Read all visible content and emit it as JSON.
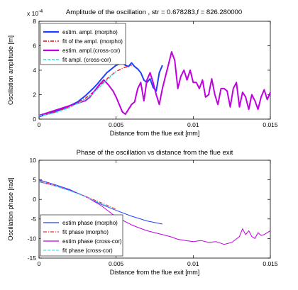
{
  "chart_data": [
    {
      "type": "line",
      "title": "Amplitude of the oscillation , str = 0.678283,f = 826.280000",
      "xlabel": "Distance from the flue exit [mm]",
      "ylabel": "Oscillation amplitude [m]",
      "exponent_label": "x 10",
      "exponent_power": "-4",
      "xlim": [
        0,
        0.015
      ],
      "ylim": [
        0,
        8
      ],
      "xticks": [
        0,
        0.005,
        0.01,
        0.015
      ],
      "xtick_labels": [
        "0",
        "0.005",
        "0.01",
        "0.015"
      ],
      "yticks": [
        0,
        2,
        4,
        6,
        8
      ],
      "ytick_labels": [
        "0",
        "2",
        "4",
        "6",
        "8"
      ],
      "grid": false,
      "legend_position": "top-left",
      "series": [
        {
          "name": "estim. ampl. (morpho)",
          "color": "#1f3fff",
          "style": "solid",
          "width": 2,
          "x": [
            0,
            0.0005,
            0.001,
            0.0015,
            0.002,
            0.0025,
            0.003,
            0.0035,
            0.0038,
            0.004,
            0.0042,
            0.0044,
            0.0046,
            0.0048,
            0.005,
            0.0052,
            0.0054,
            0.0056,
            0.0058,
            0.006,
            0.0062,
            0.0064,
            0.0066,
            0.0068,
            0.007,
            0.0072,
            0.0074,
            0.0076,
            0.0078,
            0.008
          ],
          "y": [
            0.2,
            0.4,
            0.6,
            0.8,
            1.1,
            1.4,
            1.9,
            2.5,
            2.9,
            3.2,
            3.5,
            3.8,
            4.0,
            4.2,
            4.4,
            4.5,
            4.6,
            4.4,
            4.3,
            4.6,
            4.3,
            4.1,
            3.8,
            3.2,
            3.0,
            3.3,
            2.6,
            2.3,
            3.8,
            4.4
          ]
        },
        {
          "name": "fit of the ampl. (morpho)",
          "color": "#ff2020",
          "style": "dashdot",
          "width": 1.5,
          "x": [
            0,
            0.001,
            0.002,
            0.003,
            0.0035,
            0.004,
            0.0045,
            0.005,
            0.0055,
            0.006
          ],
          "y": [
            0.25,
            0.55,
            1.0,
            1.7,
            2.2,
            2.8,
            3.4,
            3.9,
            4.2,
            4.4
          ]
        },
        {
          "name": "estim. ampl.(cross-cor)",
          "color": "#c000e0",
          "style": "solid",
          "width": 2,
          "x": [
            0,
            0.0005,
            0.001,
            0.0015,
            0.002,
            0.0025,
            0.003,
            0.0033,
            0.0036,
            0.0039,
            0.0042,
            0.0045,
            0.0048,
            0.005,
            0.0052,
            0.0054,
            0.0056,
            0.0058,
            0.006,
            0.0062,
            0.0064,
            0.0066,
            0.0068,
            0.007,
            0.0072,
            0.0074,
            0.0076,
            0.0078,
            0.008,
            0.0082,
            0.0084,
            0.0086,
            0.0088,
            0.009,
            0.0092,
            0.0094,
            0.0096,
            0.0098,
            0.01,
            0.0102,
            0.0104,
            0.0106,
            0.0108,
            0.011,
            0.0112,
            0.0114,
            0.0116,
            0.0118,
            0.012,
            0.0122,
            0.0124,
            0.0126,
            0.0128,
            0.013,
            0.0132,
            0.0134,
            0.0136,
            0.0138,
            0.014,
            0.0142,
            0.0144,
            0.0146,
            0.0148,
            0.015
          ],
          "y": [
            0.3,
            0.5,
            0.7,
            0.9,
            1.1,
            1.3,
            1.5,
            1.8,
            2.3,
            2.8,
            3.2,
            2.8,
            2.3,
            1.8,
            1.2,
            0.6,
            0.4,
            0.8,
            1.2,
            1.4,
            2.5,
            3.0,
            1.5,
            3.2,
            3.8,
            3.0,
            2.0,
            1.2,
            2.5,
            3.5,
            4.5,
            5.5,
            4.8,
            2.5,
            3.5,
            4.0,
            3.2,
            4.0,
            3.0,
            3.0,
            2.5,
            3.2,
            1.8,
            2.0,
            3.3,
            2.0,
            1.2,
            2.5,
            2.5,
            2.3,
            1.0,
            2.5,
            3.0,
            1.0,
            2.2,
            1.8,
            0.8,
            2.0,
            1.5,
            0.8,
            1.8,
            2.4,
            1.6,
            2.2
          ]
        },
        {
          "name": "fit ampl. (cross-cor)",
          "color": "#40e8e8",
          "style": "dashed",
          "width": 1.5,
          "x": [
            0,
            0.001,
            0.002,
            0.003,
            0.0035,
            0.004,
            0.0045,
            0.005
          ],
          "y": [
            0.25,
            0.5,
            0.95,
            1.6,
            2.1,
            2.7,
            3.3,
            3.9
          ]
        }
      ]
    },
    {
      "type": "line",
      "title": "Phase of the oscillation vs distance from the flue exit",
      "xlabel": "Distance from the flue exit [mm]",
      "ylabel": "Oscillation phase [rad]",
      "xlim": [
        0,
        0.015
      ],
      "ylim": [
        -15,
        10
      ],
      "xticks": [
        0,
        0.005,
        0.01,
        0.015
      ],
      "xtick_labels": [
        "0",
        "0.005",
        "0.01",
        "0.015"
      ],
      "yticks": [
        -15,
        -10,
        -5,
        0,
        5,
        10
      ],
      "ytick_labels": [
        "-15",
        "-10",
        "-5",
        "0",
        "5",
        "10"
      ],
      "grid": false,
      "legend_position": "bottom-left",
      "series": [
        {
          "name": "estim phase (morpho)",
          "color": "#1f3fff",
          "style": "solid",
          "width": 1,
          "x": [
            0,
            0.001,
            0.002,
            0.003,
            0.004,
            0.005,
            0.006,
            0.007,
            0.008
          ],
          "y": [
            5.0,
            3.8,
            2.5,
            0.7,
            -1.2,
            -2.8,
            -4.3,
            -5.5,
            -6.3
          ]
        },
        {
          "name": "fit phase (morpho)",
          "color": "#ff2020",
          "style": "dashdot",
          "width": 1,
          "x": [
            0,
            0.001,
            0.002,
            0.003,
            0.004,
            0.005
          ],
          "y": [
            4.8,
            3.6,
            2.3,
            0.8,
            -0.8,
            -2.5
          ]
        },
        {
          "name": "estim phase (cross-cor)",
          "color": "#c000e0",
          "style": "solid",
          "width": 1,
          "x": [
            0,
            0.001,
            0.002,
            0.003,
            0.004,
            0.005,
            0.006,
            0.0065,
            0.007,
            0.0075,
            0.008,
            0.0085,
            0.009,
            0.0095,
            0.01,
            0.0105,
            0.011,
            0.0115,
            0.012,
            0.0125,
            0.013,
            0.0132,
            0.0134,
            0.0136,
            0.0138,
            0.014,
            0.0142,
            0.0144,
            0.0146,
            0.0148,
            0.015
          ],
          "y": [
            4.5,
            3.5,
            2.3,
            0.8,
            -1.5,
            -4.5,
            -6.5,
            -7.3,
            -8.0,
            -8.5,
            -9.0,
            -9.5,
            -10.2,
            -10.5,
            -10.8,
            -10.5,
            -11.0,
            -10.8,
            -11.5,
            -11.0,
            -9.5,
            -7.5,
            -9.0,
            -8.0,
            -9.5,
            -10.0,
            -8.5,
            -9.2,
            -9.0,
            -8.5,
            -8.0
          ]
        },
        {
          "name": "fit phase (cross-cor)",
          "color": "#40e8e8",
          "style": "dashed",
          "width": 1,
          "x": [
            0,
            0.001,
            0.002,
            0.003,
            0.004,
            0.005
          ],
          "y": [
            4.6,
            3.5,
            2.2,
            0.7,
            -1.0,
            -2.7
          ]
        }
      ]
    }
  ]
}
